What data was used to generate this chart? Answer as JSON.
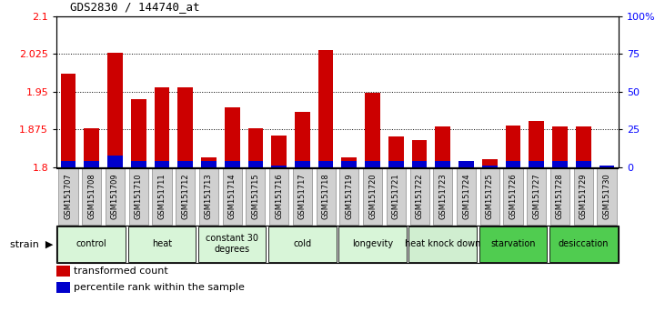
{
  "title": "GDS2830 / 144740_at",
  "samples": [
    "GSM151707",
    "GSM151708",
    "GSM151709",
    "GSM151710",
    "GSM151711",
    "GSM151712",
    "GSM151713",
    "GSM151714",
    "GSM151715",
    "GSM151716",
    "GSM151717",
    "GSM151718",
    "GSM151719",
    "GSM151720",
    "GSM151721",
    "GSM151722",
    "GSM151723",
    "GSM151724",
    "GSM151725",
    "GSM151726",
    "GSM151727",
    "GSM151728",
    "GSM151729",
    "GSM151730"
  ],
  "transformed_count": [
    1.985,
    1.878,
    2.028,
    1.935,
    1.958,
    1.958,
    1.82,
    1.92,
    1.878,
    1.864,
    1.91,
    2.033,
    1.82,
    1.948,
    1.862,
    1.855,
    1.882,
    1.803,
    1.816,
    1.883,
    1.892,
    1.882,
    1.882,
    1.803
  ],
  "percentile_rank": [
    4,
    4,
    8,
    4,
    4,
    4,
    4,
    4,
    4,
    1,
    4,
    4,
    4,
    4,
    4,
    4,
    4,
    4,
    1,
    4,
    4,
    4,
    4,
    1
  ],
  "groups": [
    {
      "label": "control",
      "start": 0,
      "end": 2,
      "color": "#d8f5d8"
    },
    {
      "label": "heat",
      "start": 3,
      "end": 5,
      "color": "#d8f5d8"
    },
    {
      "label": "constant 30\ndegrees",
      "start": 6,
      "end": 8,
      "color": "#d8f5d8"
    },
    {
      "label": "cold",
      "start": 9,
      "end": 11,
      "color": "#d8f5d8"
    },
    {
      "label": "longevity",
      "start": 12,
      "end": 14,
      "color": "#d8f5d8"
    },
    {
      "label": "heat knock down",
      "start": 15,
      "end": 17,
      "color": "#d0eed0"
    },
    {
      "label": "starvation",
      "start": 18,
      "end": 20,
      "color": "#50cc50"
    },
    {
      "label": "desiccation",
      "start": 21,
      "end": 23,
      "color": "#50cc50"
    }
  ],
  "ylim_left": [
    1.8,
    2.1
  ],
  "ylim_right": [
    0,
    100
  ],
  "yticks_left": [
    1.8,
    1.875,
    1.95,
    2.025,
    2.1
  ],
  "yticks_right": [
    0,
    25,
    50,
    75,
    100
  ],
  "bar_color": "#cc0000",
  "percentile_color": "#0000cc",
  "tick_label_bg": "#d0d0d0",
  "spine_color": "#000000"
}
